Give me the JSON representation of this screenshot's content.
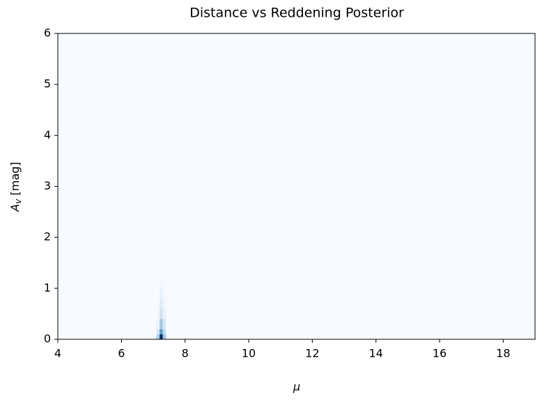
{
  "chart_data": {
    "type": "heatmap",
    "title": "Distance vs Reddening Posterior",
    "xlabel": "μ",
    "ylabel": [
      "A",
      "v",
      " [mag]"
    ],
    "xlim": [
      4,
      19
    ],
    "ylim": [
      0,
      6
    ],
    "xticks": [
      4,
      6,
      8,
      10,
      12,
      14,
      16,
      18
    ],
    "yticks": [
      0,
      1,
      2,
      3,
      4,
      5,
      6
    ],
    "colormap": [
      "#f7fbff",
      "#c6dbef",
      "#6baed6",
      "#2171b5",
      "#08306b"
    ],
    "x_bins": [
      7.1,
      7.2,
      7.3,
      7.4
    ],
    "y_bins": [
      0,
      0.1,
      0.2,
      0.4,
      0.6,
      0.8,
      1.0,
      1.2
    ],
    "density": [
      [
        0.3,
        1.0,
        0.35
      ],
      [
        0.15,
        0.55,
        0.25
      ],
      [
        0.05,
        0.35,
        0.15
      ],
      [
        0.02,
        0.2,
        0.08
      ],
      [
        0.01,
        0.12,
        0.04
      ],
      [
        0,
        0.07,
        0.02
      ],
      [
        0,
        0.03,
        0.01
      ]
    ]
  }
}
